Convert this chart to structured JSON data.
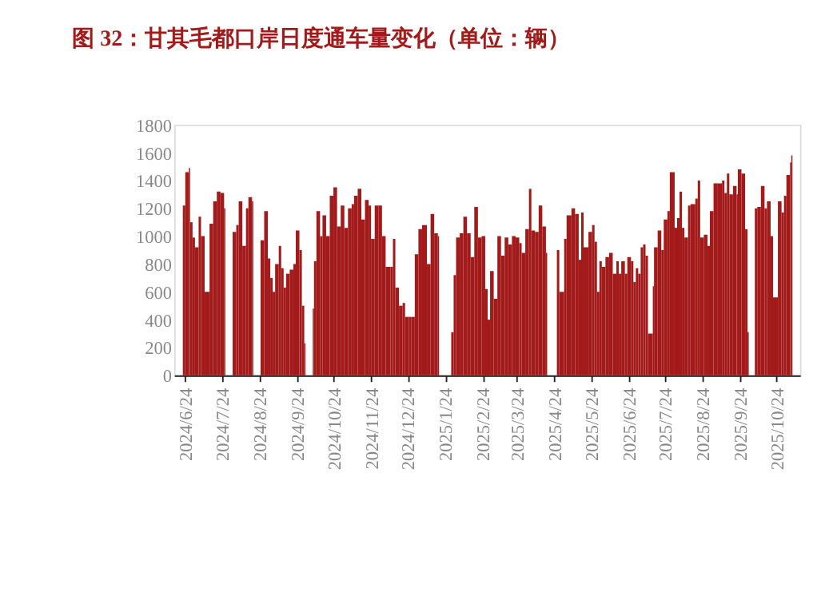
{
  "chart_data": {
    "type": "bar",
    "title": "图 32：甘其毛都口岸日度通车量变化（单位：辆）",
    "x": [
      "2024-06-22",
      "2024-06-24",
      "2024-06-27",
      "2024-06-28",
      "2024-06-30",
      "2024-07-02",
      "2024-07-05",
      "2024-07-07",
      "2024-07-10",
      "2024-07-14",
      "2024-07-17",
      "2024-07-20",
      "2024-07-23",
      "2024-07-26",
      "2024-08-02",
      "2024-08-05",
      "2024-08-07",
      "2024-08-10",
      "2024-08-13",
      "2024-08-15",
      "2024-08-18",
      "2024-08-25",
      "2024-08-28",
      "2024-08-31",
      "2024-09-02",
      "2024-09-04",
      "2024-09-06",
      "2024-09-09",
      "2024-09-11",
      "2024-09-13",
      "2024-09-15",
      "2024-09-18",
      "2024-09-21",
      "2024-09-23",
      "2024-09-26",
      "2024-09-28",
      "2024-09-30",
      "2024-10-07",
      "2024-10-08",
      "2024-10-10",
      "2024-10-13",
      "2024-10-15",
      "2024-10-18",
      "2024-10-21",
      "2024-10-24",
      "2024-10-27",
      "2024-10-30",
      "2024-11-02",
      "2024-11-05",
      "2024-11-08",
      "2024-11-10",
      "2024-11-13",
      "2024-11-16",
      "2024-11-19",
      "2024-11-22",
      "2024-11-24",
      "2024-11-27",
      "2024-11-30",
      "2024-12-03",
      "2024-12-06",
      "2024-12-10",
      "2024-12-12",
      "2024-12-14",
      "2024-12-17",
      "2024-12-20",
      "2024-12-22",
      "2024-12-25",
      "2024-12-27",
      "2024-12-30",
      "2025-01-02",
      "2025-01-05",
      "2025-01-09",
      "2025-01-12",
      "2025-01-15",
      "2025-01-18",
      "2025-01-29",
      "2025-01-31",
      "2025-02-02",
      "2025-02-05",
      "2025-02-08",
      "2025-02-11",
      "2025-02-14",
      "2025-02-17",
      "2025-02-20",
      "2025-02-23",
      "2025-02-26",
      "2025-02-28",
      "2025-03-02",
      "2025-03-05",
      "2025-03-08",
      "2025-03-11",
      "2025-03-14",
      "2025-03-17",
      "2025-03-20",
      "2025-03-23",
      "2025-03-26",
      "2025-03-28",
      "2025-03-31",
      "2025-04-03",
      "2025-04-05",
      "2025-04-08",
      "2025-04-11",
      "2025-04-14",
      "2025-04-17",
      "2025-04-26",
      "2025-04-28",
      "2025-05-02",
      "2025-05-04",
      "2025-05-08",
      "2025-05-11",
      "2025-05-14",
      "2025-05-16",
      "2025-05-18",
      "2025-05-22",
      "2025-05-25",
      "2025-05-27",
      "2025-05-29",
      "2025-05-31",
      "2025-06-02",
      "2025-06-05",
      "2025-06-08",
      "2025-06-11",
      "2025-06-14",
      "2025-06-16",
      "2025-06-18",
      "2025-06-21",
      "2025-06-23",
      "2025-06-26",
      "2025-06-28",
      "2025-06-30",
      "2025-07-02",
      "2025-07-04",
      "2025-07-06",
      "2025-07-08",
      "2025-07-10",
      "2025-07-14",
      "2025-07-15",
      "2025-07-18",
      "2025-07-21",
      "2025-07-23",
      "2025-07-26",
      "2025-07-28",
      "2025-08-01",
      "2025-08-03",
      "2025-08-05",
      "2025-08-07",
      "2025-08-09",
      "2025-08-12",
      "2025-08-14",
      "2025-08-18",
      "2025-08-20",
      "2025-08-22",
      "2025-08-25",
      "2025-08-28",
      "2025-08-30",
      "2025-09-02",
      "2025-09-05",
      "2025-09-09",
      "2025-09-11",
      "2025-09-13",
      "2025-09-15",
      "2025-09-18",
      "2025-09-21",
      "2025-09-22",
      "2025-09-25",
      "2025-09-28",
      "2025-09-30",
      "2025-10-06",
      "2025-10-08",
      "2025-10-11",
      "2025-10-14",
      "2025-10-16",
      "2025-10-19",
      "2025-10-21",
      "2025-10-25",
      "2025-10-28",
      "2025-10-30",
      "2025-11-01",
      "2025-11-04",
      "2025-11-05"
    ],
    "values": [
      1220,
      1460,
      1490,
      1100,
      990,
      920,
      1140,
      1000,
      600,
      1090,
      1250,
      1320,
      1310,
      1200,
      1030,
      1080,
      1250,
      930,
      1200,
      1280,
      1250,
      970,
      1180,
      840,
      700,
      600,
      800,
      930,
      770,
      630,
      730,
      760,
      800,
      1040,
      900,
      500,
      230,
      480,
      820,
      1180,
      1000,
      1150,
      1000,
      1290,
      1350,
      1070,
      1220,
      1060,
      1200,
      1230,
      1290,
      1340,
      1120,
      1260,
      1220,
      980,
      1220,
      1220,
      1000,
      780,
      780,
      980,
      630,
      500,
      520,
      420,
      420,
      420,
      870,
      1050,
      1080,
      800,
      1160,
      1020,
      1000,
      310,
      720,
      990,
      1020,
      1140,
      1020,
      850,
      1210,
      990,
      1000,
      620,
      400,
      750,
      550,
      1000,
      860,
      990,
      940,
      1000,
      990,
      950,
      880,
      1050,
      1340,
      1040,
      1030,
      1220,
      1070,
      880,
      900,
      600,
      980,
      1150,
      1200,
      1160,
      830,
      1170,
      920,
      1030,
      1080,
      960,
      600,
      820,
      780,
      850,
      880,
      730,
      820,
      730,
      820,
      730,
      850,
      820,
      670,
      770,
      730,
      920,
      940,
      860,
      300,
      640,
      920,
      1040,
      900,
      1120,
      1180,
      1460,
      1060,
      1130,
      1320,
      1060,
      990,
      1220,
      1230,
      1270,
      1400,
      990,
      1010,
      930,
      1180,
      1380,
      1380,
      1400,
      1310,
      1450,
      1300,
      1360,
      1300,
      1480,
      1450,
      1050,
      310,
      1200,
      1210,
      1360,
      1200,
      1250,
      1000,
      560,
      1250,
      1170,
      1290,
      1440,
      1530,
      1580
    ],
    "color": "#a31a1a",
    "xlim": [
      "2024-06-21",
      "2025-11-06"
    ],
    "xticks": [
      {
        "value": "2024-06-24",
        "label": "2024/6/24"
      },
      {
        "value": "2024-07-24",
        "label": "2024/7/24"
      },
      {
        "value": "2024-08-24",
        "label": "2024/8/24"
      },
      {
        "value": "2024-09-24",
        "label": "2024/9/24"
      },
      {
        "value": "2024-10-24",
        "label": "2024/10/24"
      },
      {
        "value": "2024-11-24",
        "label": "2024/11/24"
      },
      {
        "value": "2024-12-24",
        "label": "2024/12/24"
      },
      {
        "value": "2025-01-24",
        "label": "2025/1/24"
      },
      {
        "value": "2025-02-24",
        "label": "2025/2/24"
      },
      {
        "value": "2025-03-24",
        "label": "2025/3/24"
      },
      {
        "value": "2025-04-24",
        "label": "2025/4/24"
      },
      {
        "value": "2025-05-24",
        "label": "2025/5/24"
      },
      {
        "value": "2025-06-24",
        "label": "2025/6/24"
      },
      {
        "value": "2025-07-24",
        "label": "2025/7/24"
      },
      {
        "value": "2025-08-24",
        "label": "2025/8/24"
      },
      {
        "value": "2025-09-24",
        "label": "2025/9/24"
      },
      {
        "value": "2025-10-24",
        "label": "2025/10/24"
      }
    ],
    "ylim": [
      0,
      1800
    ],
    "yticks": [
      0,
      200,
      400,
      600,
      800,
      1000,
      1200,
      1400,
      1600,
      1800
    ],
    "grid": false
  }
}
